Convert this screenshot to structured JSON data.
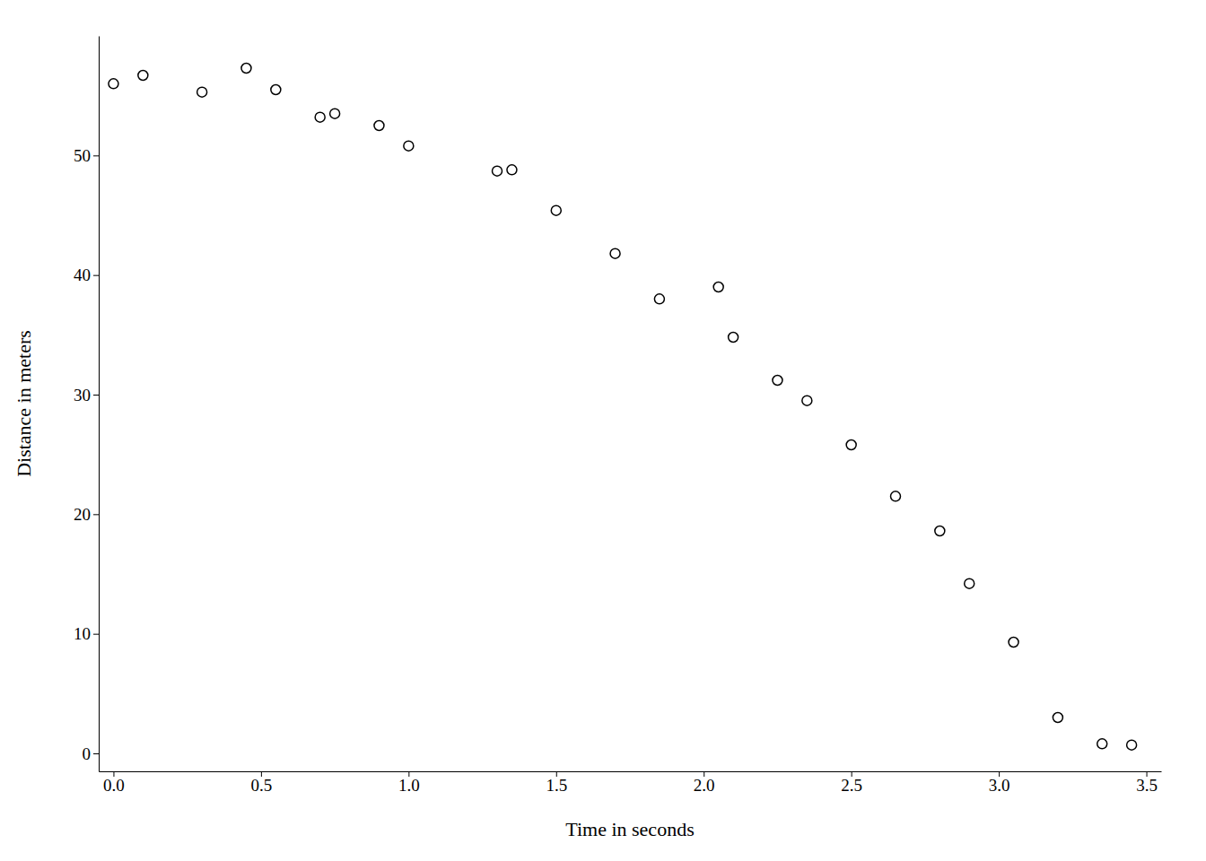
{
  "chart_data": {
    "type": "scatter",
    "x": [
      0.0,
      0.1,
      0.3,
      0.45,
      0.55,
      0.7,
      0.75,
      0.9,
      1.0,
      1.3,
      1.35,
      1.5,
      1.7,
      1.85,
      2.05,
      2.1,
      2.25,
      2.35,
      2.5,
      2.65,
      2.8,
      2.9,
      3.05,
      3.2,
      3.35,
      3.45
    ],
    "y": [
      56.0,
      56.7,
      55.3,
      57.3,
      55.5,
      53.2,
      53.5,
      52.5,
      50.8,
      48.7,
      48.8,
      45.4,
      41.8,
      38.0,
      39.0,
      34.8,
      31.2,
      29.5,
      25.8,
      21.5,
      18.6,
      14.2,
      9.3,
      3.0,
      0.8,
      0.7
    ],
    "xlabel": "Time in seconds",
    "ylabel": "Distance in meters",
    "xlim": [
      -0.05,
      3.55
    ],
    "ylim": [
      -1.5,
      60
    ],
    "xticks": [
      {
        "value": 0,
        "label": "0.0"
      },
      0.5,
      {
        "value": 1,
        "label": "1.0"
      },
      1.5,
      {
        "value": 2,
        "label": "2.0"
      },
      2.5,
      {
        "value": 3,
        "label": "3.0"
      },
      3.5
    ],
    "yticks": [
      0,
      10,
      20,
      30,
      40,
      50
    ],
    "color": "black",
    "marker": "circle-open",
    "grid": false
  }
}
